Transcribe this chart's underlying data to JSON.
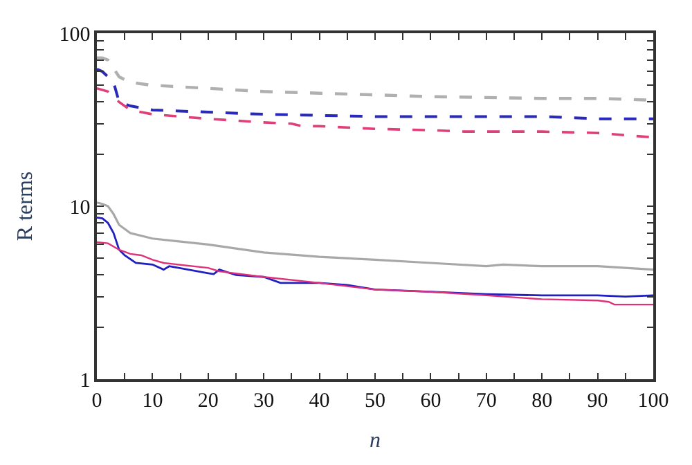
{
  "chart_data": {
    "type": "line",
    "xlabel": "n",
    "ylabel": "R terms",
    "log": "y",
    "marker": "none",
    "xlim": [
      0,
      100
    ],
    "xticks": [
      0,
      {
        "value": 5,
        "label": null
      },
      10,
      {
        "value": 15,
        "label": null
      },
      20,
      {
        "value": 25,
        "label": null
      },
      30,
      {
        "value": 35,
        "label": null
      },
      40,
      {
        "value": 45,
        "label": null
      },
      50,
      {
        "value": 55,
        "label": null
      },
      60,
      {
        "value": 65,
        "label": null
      },
      70,
      {
        "value": 75,
        "label": null
      },
      80,
      {
        "value": 85,
        "label": null
      },
      90,
      {
        "value": 95,
        "label": null
      },
      100
    ],
    "ylim": [
      1,
      100
    ],
    "yticks": [
      1,
      {
        "value": 2,
        "label": null
      },
      {
        "value": 3,
        "label": null
      },
      {
        "value": 4,
        "label": null
      },
      {
        "value": 5,
        "label": null
      },
      {
        "value": 6,
        "label": null
      },
      {
        "value": 7,
        "label": null
      },
      {
        "value": 8,
        "label": null
      },
      {
        "value": 9,
        "label": null
      },
      10,
      {
        "value": 20,
        "label": null
      },
      {
        "value": 30,
        "label": null
      },
      {
        "value": 40,
        "label": null
      },
      {
        "value": 50,
        "label": null
      },
      {
        "value": 60,
        "label": null
      },
      {
        "value": 70,
        "label": null
      },
      {
        "value": 80,
        "label": null
      },
      {
        "value": 90,
        "label": null
      },
      100
    ],
    "series": [
      {
        "color": "#b0b0b0",
        "line_style": "dashed",
        "x": [
          0,
          1,
          2,
          4,
          6,
          10,
          20,
          30,
          40,
          50,
          60,
          70,
          80,
          90,
          100
        ],
        "values": [
          72,
          72,
          70,
          56,
          52,
          50,
          48,
          46,
          45,
          44,
          43,
          42.5,
          42,
          42,
          41
        ]
      },
      {
        "color": "#2a2ab8",
        "line_style": "dashed",
        "x": [
          0,
          1,
          2,
          3,
          4,
          6,
          10,
          20,
          30,
          40,
          50,
          60,
          70,
          80,
          90,
          100
        ],
        "values": [
          62,
          60,
          56,
          52,
          40,
          38,
          36,
          35,
          34,
          33.5,
          33,
          33,
          33,
          33,
          32,
          32
        ]
      },
      {
        "color": "#e0407a",
        "line_style": "dashed",
        "x": [
          0,
          2,
          4,
          6,
          10,
          20,
          30,
          35,
          37,
          40,
          50,
          60,
          66,
          70,
          80,
          90,
          100
        ],
        "values": [
          48,
          46,
          40,
          36,
          34,
          32,
          30.5,
          30,
          29,
          29,
          28,
          27.5,
          27,
          27,
          27,
          26.5,
          25
        ]
      },
      {
        "color": "#a8a8a8",
        "line_style": "solid",
        "x": [
          0,
          1,
          2,
          3,
          4,
          6,
          10,
          20,
          30,
          40,
          50,
          60,
          70,
          73,
          80,
          90,
          100
        ],
        "values": [
          10.5,
          10.3,
          10,
          9,
          7.8,
          7,
          6.5,
          6,
          5.4,
          5.1,
          4.9,
          4.7,
          4.5,
          4.6,
          4.5,
          4.5,
          4.3
        ]
      },
      {
        "color": "#2020c0",
        "line_style": "solid",
        "x": [
          0,
          1,
          2,
          3,
          4,
          5,
          7,
          10,
          12,
          13,
          20,
          21,
          22,
          25,
          30,
          33,
          40,
          45,
          50,
          60,
          70,
          80,
          90,
          95,
          100
        ],
        "values": [
          8.6,
          8.5,
          8,
          7,
          5.6,
          5.2,
          4.7,
          4.6,
          4.3,
          4.5,
          4.1,
          4.05,
          4.3,
          4.0,
          3.9,
          3.6,
          3.6,
          3.5,
          3.3,
          3.2,
          3.1,
          3.05,
          3.05,
          3.0,
          3.05
        ]
      },
      {
        "color": "#e0307a",
        "line_style": "solid",
        "x": [
          0,
          2,
          4,
          6,
          8,
          10,
          12,
          20,
          22,
          30,
          40,
          50,
          60,
          70,
          80,
          90,
          92,
          93,
          100
        ],
        "values": [
          6.2,
          6.1,
          5.6,
          5.3,
          5.2,
          4.9,
          4.7,
          4.4,
          4.2,
          3.9,
          3.6,
          3.3,
          3.2,
          3.05,
          2.9,
          2.85,
          2.8,
          2.7,
          2.7
        ]
      }
    ]
  }
}
